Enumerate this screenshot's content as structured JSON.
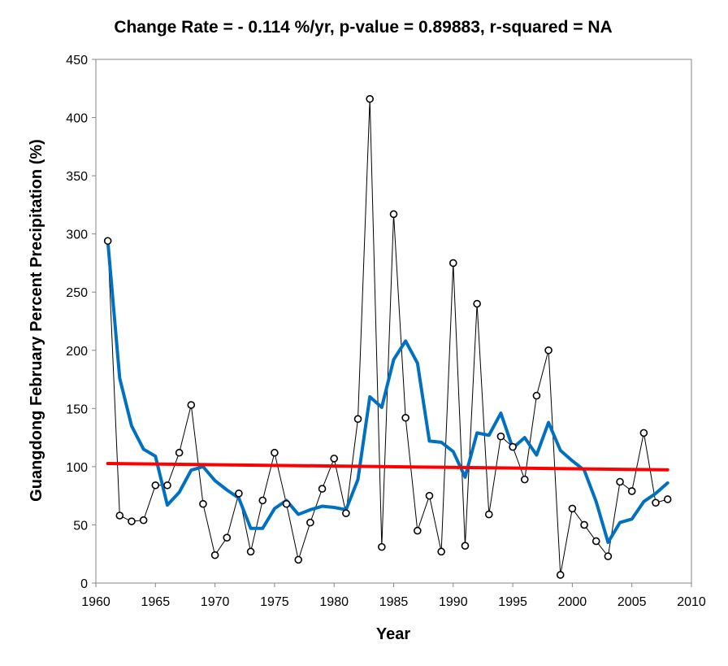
{
  "chart_data": {
    "type": "line",
    "title": "Change Rate =  - 0.114 %/yr,  p-value =  0.89883,  r-squared =  NA",
    "xlabel": "Year",
    "ylabel": "Guangdong February Percent Precipitation (%)",
    "xlim": [
      1960,
      2010
    ],
    "ylim": [
      0,
      450
    ],
    "x_ticks": [
      1960,
      1965,
      1970,
      1975,
      1980,
      1985,
      1990,
      1995,
      2000,
      2005,
      2010
    ],
    "y_ticks": [
      0,
      50,
      100,
      150,
      200,
      250,
      300,
      350,
      400,
      450
    ],
    "grid": false,
    "legend": "none",
    "series": [
      {
        "style": "observed",
        "color": "#000000",
        "x": [
          1961,
          1962,
          1963,
          1964,
          1965,
          1966,
          1967,
          1968,
          1969,
          1970,
          1971,
          1972,
          1973,
          1974,
          1975,
          1976,
          1977,
          1978,
          1979,
          1980,
          1981,
          1982,
          1983,
          1984,
          1985,
          1986,
          1987,
          1988,
          1989,
          1990,
          1991,
          1992,
          1993,
          1994,
          1995,
          1996,
          1997,
          1998,
          1999,
          2000,
          2001,
          2002,
          2003,
          2004,
          2005,
          2006,
          2007,
          2008
        ],
        "y": [
          294,
          58,
          53,
          54,
          84,
          84,
          112,
          153,
          68,
          24,
          39,
          77,
          27,
          71,
          112,
          68,
          20,
          52,
          81,
          107,
          60,
          141,
          416,
          31,
          317,
          142,
          45,
          75,
          27,
          275,
          32,
          240,
          59,
          126,
          117,
          89,
          161,
          200,
          7,
          64,
          50,
          36,
          23,
          87,
          79,
          129,
          69,
          72
        ]
      },
      {
        "style": "moving-average",
        "color": "#0070C0",
        "x": [
          1961,
          1962,
          1963,
          1964,
          1965,
          1966,
          1967,
          1968,
          1969,
          1970,
          1971,
          1972,
          1973,
          1974,
          1975,
          1976,
          1977,
          1978,
          1979,
          1980,
          1981,
          1982,
          1983,
          1984,
          1985,
          1986,
          1987,
          1988,
          1989,
          1990,
          1991,
          1992,
          1993,
          1994,
          1995,
          1996,
          1997,
          1998,
          1999,
          2000,
          2001,
          2002,
          2003,
          2004,
          2005,
          2006,
          2007,
          2008
        ],
        "y": [
          294,
          176,
          135,
          115,
          109,
          67,
          78,
          97,
          100,
          88,
          80,
          73,
          47,
          47,
          64,
          71,
          59,
          63,
          66,
          65,
          63,
          89,
          160,
          151,
          192,
          208,
          189,
          122,
          121,
          113,
          91,
          129,
          127,
          146,
          116,
          125,
          110,
          138,
          114,
          105,
          97,
          70,
          35,
          52,
          55,
          70,
          77,
          86
        ]
      },
      {
        "style": "trend",
        "color": "#FF0000",
        "x": [
          1961,
          2008
        ],
        "y": [
          102.7,
          97.3
        ]
      }
    ]
  }
}
